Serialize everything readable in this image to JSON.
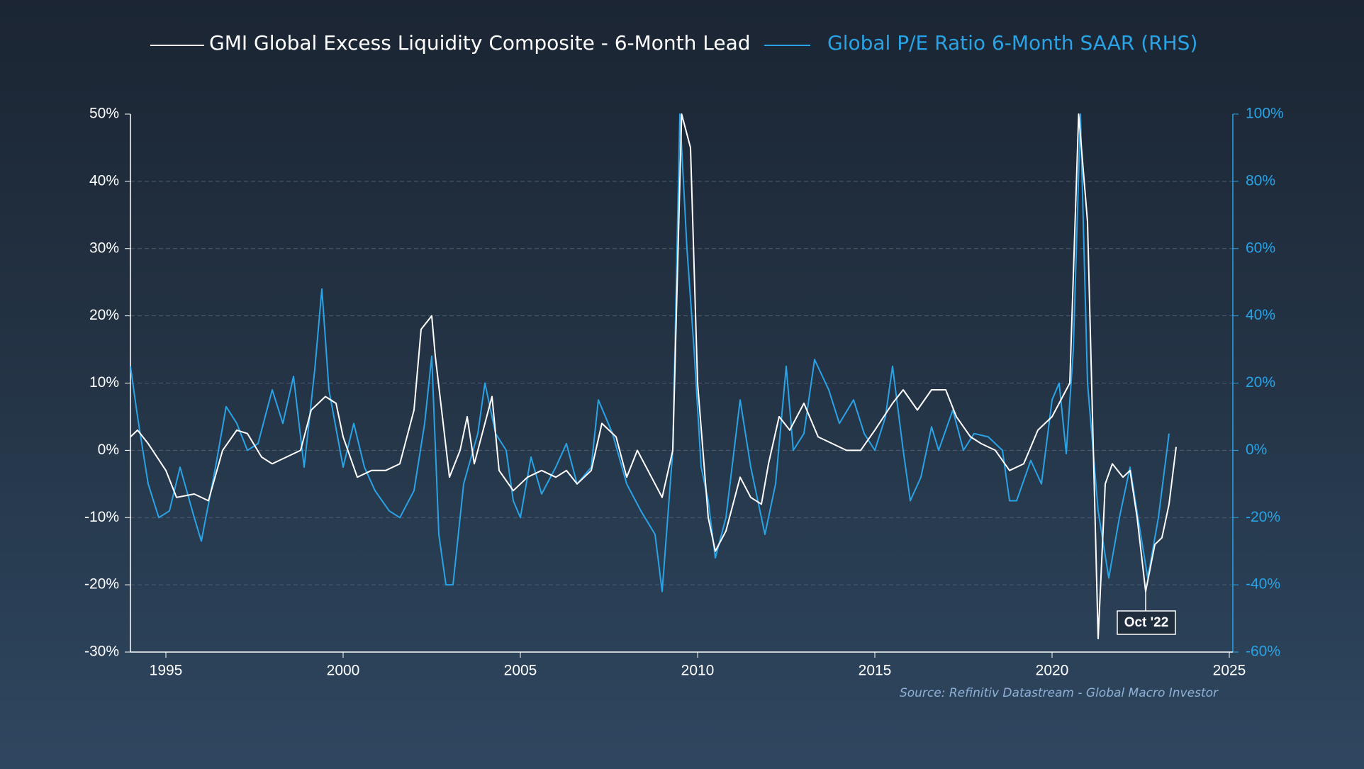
{
  "chart_data": {
    "type": "line",
    "series": [
      {
        "name": "GMI Global Excess Liquidity Composite - 6-Month Lead",
        "color": "#ffffff",
        "axis": "y",
        "x": [
          1994.0,
          1994.2,
          1994.5,
          1995.0,
          1995.3,
          1995.8,
          1996.2,
          1996.6,
          1997.0,
          1997.3,
          1997.7,
          1998.0,
          1998.4,
          1998.8,
          1999.1,
          1999.5,
          1999.8,
          2000.0,
          2000.4,
          2000.8,
          2001.2,
          2001.6,
          2002.0,
          2002.2,
          2002.5,
          2002.6,
          2003.0,
          2003.3,
          2003.5,
          2003.7,
          2004.0,
          2004.2,
          2004.4,
          2004.8,
          2005.2,
          2005.6,
          2006.0,
          2006.3,
          2006.6,
          2007.0,
          2007.3,
          2007.7,
          2008.0,
          2008.3,
          2008.7,
          2009.0,
          2009.3,
          2009.55,
          2009.8,
          2010.0,
          2010.3,
          2010.5,
          2010.8,
          2011.2,
          2011.5,
          2011.8,
          2012.0,
          2012.3,
          2012.6,
          2013.0,
          2013.4,
          2013.8,
          2014.2,
          2014.6,
          2015.0,
          2015.5,
          2015.8,
          2016.2,
          2016.6,
          2017.0,
          2017.3,
          2017.7,
          2018.0,
          2018.4,
          2018.8,
          2019.2,
          2019.6,
          2020.0,
          2020.5,
          2020.75,
          2021.0,
          2021.3,
          2021.5,
          2021.7,
          2022.0,
          2022.2,
          2022.4,
          2022.64,
          2022.9,
          2023.1,
          2023.3,
          2023.5
        ],
        "values": [
          2,
          3,
          1,
          -3,
          -7,
          -6.5,
          -7.5,
          0,
          3,
          2.5,
          -1,
          -2,
          -1,
          0,
          6,
          8,
          7,
          2,
          -4,
          -3,
          -3,
          -2,
          6,
          18,
          20,
          14,
          -4,
          0,
          5,
          -2,
          4,
          8,
          -3,
          -6,
          -4,
          -3,
          -4,
          -3,
          -5,
          -3,
          4,
          2,
          -4,
          0,
          -4,
          -7,
          0,
          50,
          45,
          10,
          -10,
          -15,
          -12,
          -4,
          -7,
          -8,
          -2,
          5,
          3,
          7,
          2,
          1,
          0,
          0,
          3,
          7,
          9,
          6,
          9,
          9,
          5,
          2,
          1,
          0,
          -3,
          -2,
          3,
          5,
          10,
          50,
          34,
          -28,
          -5,
          -2,
          -4,
          -3,
          -10,
          -21,
          -14,
          -13,
          -8,
          0.5
        ]
      },
      {
        "name": "Global P/E Ratio 6-Month SAAR (RHS)",
        "color": "#29a3e6",
        "axis": "y2",
        "x": [
          1994.0,
          1994.2,
          1994.5,
          1994.8,
          1995.1,
          1995.4,
          1995.8,
          1996.0,
          1996.4,
          1996.7,
          1997.0,
          1997.3,
          1997.6,
          1998.0,
          1998.3,
          1998.6,
          1998.9,
          1999.2,
          1999.4,
          1999.6,
          2000.0,
          2000.3,
          2000.6,
          2000.9,
          2001.3,
          2001.6,
          2002.0,
          2002.3,
          2002.5,
          2002.7,
          2002.9,
          2003.1,
          2003.4,
          2003.8,
          2004.0,
          2004.3,
          2004.6,
          2004.8,
          2005.0,
          2005.3,
          2005.6,
          2006.0,
          2006.3,
          2006.6,
          2007.0,
          2007.2,
          2007.6,
          2008.0,
          2008.4,
          2008.8,
          2009.0,
          2009.3,
          2009.5,
          2009.7,
          2009.9,
          2010.1,
          2010.3,
          2010.5,
          2010.8,
          2011.2,
          2011.5,
          2011.9,
          2012.2,
          2012.5,
          2012.7,
          2013.0,
          2013.3,
          2013.7,
          2014.0,
          2014.4,
          2014.7,
          2015.0,
          2015.3,
          2015.5,
          2015.8,
          2016.0,
          2016.3,
          2016.6,
          2016.8,
          2017.2,
          2017.5,
          2017.8,
          2018.2,
          2018.6,
          2018.8,
          2019.0,
          2019.4,
          2019.7,
          2020.0,
          2020.2,
          2020.4,
          2020.6,
          2020.8,
          2021.0,
          2021.3,
          2021.6,
          2021.9,
          2022.2,
          2022.5,
          2022.7,
          2023.0,
          2023.3
        ],
        "values": [
          25,
          10,
          -10,
          -20,
          -18,
          -5,
          -20,
          -27,
          -5,
          13,
          8,
          0,
          2,
          18,
          8,
          22,
          -5,
          24,
          48,
          18,
          -5,
          8,
          -5,
          -12,
          -18,
          -20,
          -12,
          8,
          28,
          -25,
          -40,
          -40,
          -10,
          5,
          20,
          5,
          0,
          -15,
          -20,
          -2,
          -13,
          -5,
          2,
          -10,
          -5,
          15,
          5,
          -10,
          -18,
          -25,
          -42,
          0,
          100,
          60,
          30,
          -5,
          -15,
          -32,
          -20,
          15,
          -5,
          -25,
          -10,
          25,
          0,
          5,
          27,
          18,
          8,
          15,
          5,
          0,
          10,
          25,
          0,
          -15,
          -8,
          7,
          0,
          12,
          0,
          5,
          4,
          0,
          -15,
          -15,
          -3,
          -10,
          15,
          20,
          -1,
          30,
          100,
          20,
          -18,
          -38,
          -20,
          -5,
          -25,
          -38,
          -20,
          5
        ]
      }
    ],
    "xlim": [
      1994,
      2025.1
    ],
    "xticks": [
      1995,
      2000,
      2005,
      2010,
      2015,
      2020,
      2025
    ],
    "ylim": [
      -30,
      50
    ],
    "yticks": [
      {
        "value": 50,
        "label": "50%"
      },
      {
        "value": 40,
        "label": "40%"
      },
      {
        "value": 30,
        "label": "30%"
      },
      {
        "value": 20,
        "label": "20%"
      },
      {
        "value": 10,
        "label": "10%"
      },
      {
        "value": 0,
        "label": "0%"
      },
      {
        "value": -10,
        "label": "-10%"
      },
      {
        "value": -20,
        "label": "-20%"
      },
      {
        "value": -30,
        "label": "-30%"
      }
    ],
    "y2lim": [
      -60,
      100
    ],
    "y2ticks": [
      {
        "value": 100,
        "label": "100%"
      },
      {
        "value": 80,
        "label": "80%"
      },
      {
        "value": 60,
        "label": "60%"
      },
      {
        "value": 40,
        "label": "40%"
      },
      {
        "value": 20,
        "label": "20%"
      },
      {
        "value": 0,
        "label": "0%"
      },
      {
        "value": -20,
        "label": "-20%"
      },
      {
        "value": -40,
        "label": "-40%"
      },
      {
        "value": -60,
        "label": "-60%"
      }
    ],
    "grid": true,
    "annotations": [
      {
        "text": "Oct '22",
        "x": 2022.64,
        "y": -21
      }
    ],
    "source": "Source: Refinitiv Datastream - Global Macro Investor"
  }
}
